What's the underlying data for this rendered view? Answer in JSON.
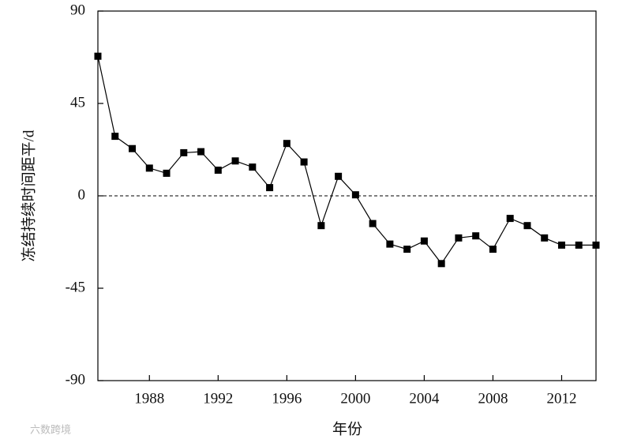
{
  "chart_data": {
    "type": "line",
    "x_label": "年份",
    "y_label": "冻结持续时间距平/d",
    "x": [
      1985,
      1986,
      1987,
      1988,
      1989,
      1990,
      1991,
      1992,
      1993,
      1994,
      1995,
      1996,
      1997,
      1998,
      1999,
      2000,
      2001,
      2002,
      2003,
      2004,
      2005,
      2006,
      2007,
      2008,
      2009,
      2010,
      2011,
      2012,
      2013,
      2014
    ],
    "series": [
      {
        "color": "#000000",
        "values": [
          68,
          29,
          23,
          13.5,
          11,
          21,
          21.5,
          12.5,
          17,
          14,
          4,
          25.5,
          16.5,
          -14.5,
          9.5,
          0.5,
          -13.5,
          -23.5,
          -26,
          -22,
          -33,
          -20.5,
          -19.5,
          -26,
          -11,
          -14.5,
          -20.5,
          -24,
          -24,
          -24
        ]
      }
    ],
    "xlim": [
      1985,
      2014
    ],
    "xticks": [
      1988,
      1992,
      1996,
      2000,
      2004,
      2008,
      2012
    ],
    "ylim": [
      -90,
      90
    ],
    "yticks": [
      -90,
      -45,
      0,
      45,
      90
    ],
    "hline": {
      "value": 0,
      "style": "dashed"
    },
    "watermark": "六数跨境"
  }
}
